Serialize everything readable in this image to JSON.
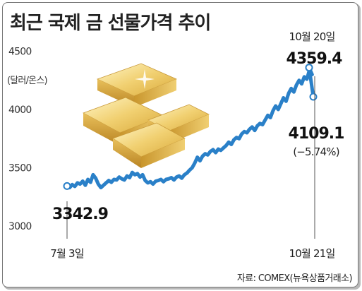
{
  "title": "최근 국제 금 선물가격 추이",
  "source": "자료: COMEX(뉴욕상품거래소)",
  "colors": {
    "line": "#2a80c8",
    "marker_fill": "#ffffff",
    "gold": "#e8c25a"
  },
  "illustration": "gold-bars",
  "chart_data": {
    "type": "line",
    "title": "최근 국제 금 선물가격 추이",
    "ylabel": "(달러/온스)",
    "ylim": [
      3000,
      4600
    ],
    "y_ticks": [
      "4500",
      "4000",
      "3500",
      "3000"
    ],
    "y_tick_values": [
      4500,
      4000,
      3500,
      3000
    ],
    "x_tick_labels": [
      "7월 3일",
      "10월 21일"
    ],
    "annotations": {
      "start_value": "3342.9",
      "peak_date": "10월 20일",
      "peak_value": "4359.4",
      "end_value": "4109.1",
      "end_change": "(−5.74%)"
    },
    "series": [
      {
        "values": [
          3342.9,
          3330,
          3355,
          3340,
          3370,
          3360,
          3385,
          3350,
          3400,
          3375,
          3440,
          3410,
          3360,
          3330,
          3350,
          3370,
          3390,
          3375,
          3400,
          3395,
          3420,
          3405,
          3395,
          3430,
          3415,
          3460,
          3440,
          3450,
          3420,
          3440,
          3390,
          3370,
          3380,
          3360,
          3385,
          3390,
          3400,
          3380,
          3400,
          3405,
          3415,
          3395,
          3420,
          3430,
          3410,
          3440,
          3455,
          3480,
          3500,
          3540,
          3590,
          3560,
          3600,
          3620,
          3610,
          3640,
          3655,
          3630,
          3660,
          3650,
          3670,
          3690,
          3720,
          3700,
          3740,
          3760,
          3750,
          3790,
          3810,
          3800,
          3830,
          3850,
          3820,
          3860,
          3880,
          3870,
          3910,
          3950,
          3930,
          3990,
          4030,
          4000,
          4050,
          4100,
          4070,
          4140,
          4180,
          4150,
          4210,
          4250,
          4220,
          4280,
          4260,
          4340,
          4300,
          4359.4,
          4109.1
        ]
      }
    ]
  }
}
